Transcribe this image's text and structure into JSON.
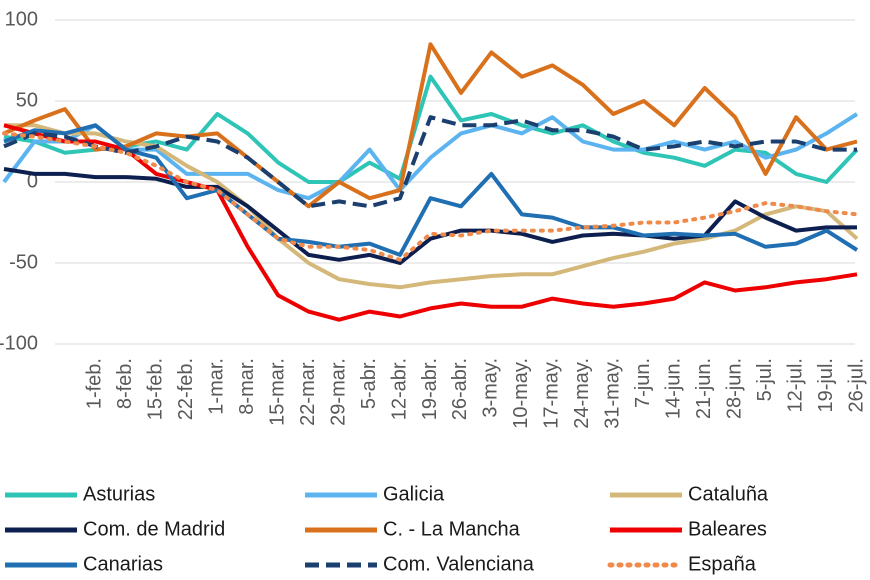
{
  "chart_data": {
    "type": "line",
    "categories": [
      null,
      null,
      null,
      "1-feb.",
      "8-feb.",
      "15-feb.",
      "22-feb.",
      "1-mar.",
      "8-mar.",
      "15-mar.",
      "22-mar.",
      "29-mar.",
      "5-abr.",
      "12-abr.",
      "19-abr.",
      "26-abr.",
      "3-may.",
      "10-may.",
      "17-may.",
      "24-may.",
      "31-may.",
      "7-jun.",
      "14-jun.",
      "21-jun.",
      "28-jun.",
      "5-jul.",
      "12-jul.",
      "19-jul.",
      "26-jul."
    ],
    "ylim": [
      -100,
      100
    ],
    "yticks": [
      -100,
      -50,
      0,
      50,
      100
    ],
    "grid": true,
    "series": [
      {
        "name": "Asturias",
        "color": "#2ec4b6",
        "dash": "solid",
        "values": [
          28,
          25,
          18,
          20,
          22,
          25,
          20,
          42,
          30,
          12,
          0,
          0,
          12,
          2,
          65,
          38,
          42,
          35,
          30,
          35,
          25,
          18,
          15,
          10,
          20,
          18,
          5,
          0,
          20
        ]
      },
      {
        "name": "Galicia",
        "color": "#5bb4f0",
        "dash": "solid",
        "values": [
          0,
          25,
          25,
          35,
          20,
          20,
          5,
          5,
          5,
          -5,
          -10,
          0,
          20,
          -5,
          15,
          30,
          35,
          30,
          40,
          25,
          20,
          20,
          25,
          20,
          25,
          15,
          20,
          30,
          42
        ]
      },
      {
        "name": "Cataluña",
        "color": "#d4b87a",
        "dash": "solid",
        "values": [
          35,
          35,
          30,
          30,
          25,
          22,
          10,
          0,
          -15,
          -35,
          -50,
          -60,
          -63,
          -65,
          -62,
          -60,
          -58,
          -57,
          -57,
          -52,
          -47,
          -43,
          -38,
          -35,
          -30,
          -20,
          -15,
          -18,
          -35
        ]
      },
      {
        "name": "Com. de Madrid",
        "color": "#0d1f4f",
        "dash": "solid",
        "values": [
          8,
          5,
          5,
          3,
          3,
          2,
          -3,
          -3,
          -15,
          -30,
          -45,
          -48,
          -45,
          -50,
          -35,
          -30,
          -30,
          -32,
          -37,
          -33,
          -32,
          -33,
          -35,
          -33,
          -12,
          -22,
          -30,
          -28,
          -28
        ]
      },
      {
        "name": "C. - La Mancha",
        "color": "#d9711c",
        "dash": "solid",
        "values": [
          30,
          38,
          45,
          20,
          22,
          30,
          28,
          30,
          15,
          0,
          -15,
          0,
          -10,
          -5,
          85,
          55,
          80,
          65,
          72,
          60,
          42,
          50,
          35,
          58,
          40,
          5,
          40,
          20,
          25
        ]
      },
      {
        "name": "Baleares",
        "color": "#ee0000",
        "dash": "solid",
        "values": [
          35,
          30,
          25,
          25,
          20,
          5,
          0,
          -5,
          -40,
          -70,
          -80,
          -85,
          -80,
          -83,
          -78,
          -75,
          -77,
          -77,
          -72,
          -75,
          -77,
          -75,
          -72,
          -62,
          -67,
          -65,
          -62,
          -60,
          -57
        ]
      },
      {
        "name": "Canarias",
        "color": "#1f6fb2",
        "dash": "solid",
        "values": [
          25,
          32,
          30,
          35,
          20,
          15,
          -10,
          -5,
          -20,
          -35,
          -37,
          -40,
          -38,
          -45,
          -10,
          -15,
          5,
          -20,
          -22,
          -28,
          -28,
          -33,
          -32,
          -33,
          -32,
          -40,
          -38,
          -30,
          -42
        ]
      },
      {
        "name": "Com. Valenciana",
        "color": "#1b3f6e",
        "dash": "dash",
        "values": [
          22,
          30,
          28,
          22,
          18,
          22,
          28,
          25,
          15,
          0,
          -15,
          -12,
          -15,
          -10,
          40,
          35,
          35,
          38,
          32,
          32,
          28,
          20,
          22,
          25,
          22,
          25,
          25,
          20,
          20
        ]
      },
      {
        "name": "España",
        "color": "#f08a4b",
        "dash": "dot",
        "values": [
          30,
          28,
          25,
          22,
          18,
          10,
          0,
          -5,
          -20,
          -35,
          -40,
          -40,
          -42,
          -48,
          -32,
          -33,
          -30,
          -30,
          -30,
          -28,
          -27,
          -25,
          -25,
          -22,
          -18,
          -13,
          -15,
          -18,
          -20
        ]
      }
    ]
  }
}
